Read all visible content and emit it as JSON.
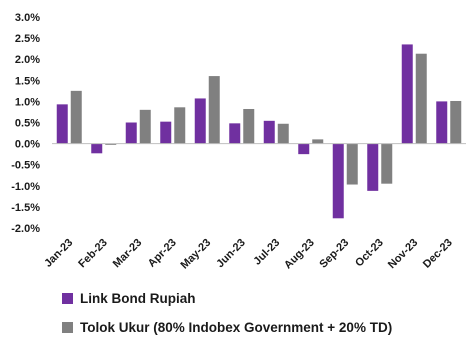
{
  "chart_data": {
    "type": "bar",
    "categories": [
      "Jan-23",
      "Feb-23",
      "Mar-23",
      "Apr-23",
      "May-23",
      "Jun-23",
      "Jul-23",
      "Aug-23",
      "Sep-23",
      "Oct-23",
      "Nov-23",
      "Dec-23"
    ],
    "series": [
      {
        "name": "Link Bond Rupiah",
        "color": "#7030a0",
        "values": [
          0.93,
          -0.23,
          0.5,
          0.52,
          1.07,
          0.48,
          0.54,
          -0.25,
          -1.77,
          -1.12,
          2.35,
          1.0
        ]
      },
      {
        "name": "Tolok Ukur (80% Indobex Government + 20% TD)",
        "color": "#808080",
        "values": [
          1.25,
          -0.03,
          0.8,
          0.86,
          1.6,
          0.82,
          0.47,
          0.1,
          -0.97,
          -0.95,
          2.13,
          1.01
        ]
      }
    ],
    "ylim": [
      -2.0,
      3.0
    ],
    "yticks": [
      "3.0%",
      "2.5%",
      "2.0%",
      "1.5%",
      "1.0%",
      "0.5%",
      "0.0%",
      "-0.5%",
      "-1.0%",
      "-1.5%",
      "-2.0%"
    ],
    "legend_position": "bottom",
    "grid": false
  }
}
